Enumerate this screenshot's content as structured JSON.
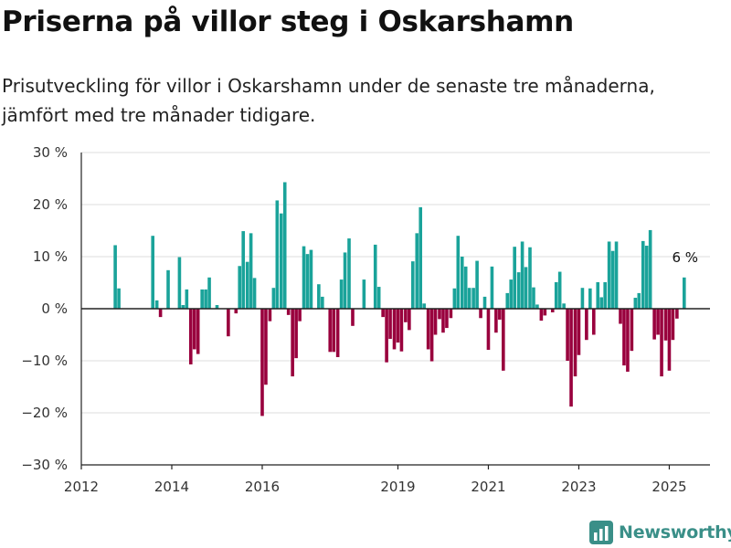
{
  "title": "Priserna på villor steg i Oskarshamn",
  "subtitle": "Prisutveckling för villor i Oskarshamn under de senaste tre månaderna, jämfört med tre månader tidigare.",
  "brand": {
    "name": "Newsworthy",
    "color": "#3a8f88"
  },
  "colors": {
    "positive": "#1aa39a",
    "negative": "#99003d",
    "grid": "#dddddd",
    "axis": "#222222"
  },
  "chart_data": {
    "type": "bar",
    "ylim": [
      -30,
      30
    ],
    "yticks": [
      30,
      20,
      10,
      0,
      -10,
      -20,
      -30
    ],
    "ytick_labels": [
      "30 %",
      "20 %",
      "10 %",
      "0 %",
      "−10 %",
      "−20 %",
      "−30 %"
    ],
    "xticks": [
      2012,
      2014,
      2016,
      2019,
      2021,
      2023,
      2025
    ],
    "xtick_labels": [
      "2012",
      "2014",
      "2016",
      "2019",
      "2021",
      "2023",
      "2025"
    ],
    "grid": true,
    "annotation": {
      "text": "6 %",
      "x": 2025.33
    },
    "series": [
      {
        "values": [
          [
            2012.75,
            12.2
          ],
          [
            2012.83,
            3.9
          ],
          [
            2013.58,
            14.0
          ],
          [
            2013.67,
            1.6
          ],
          [
            2013.75,
            -1.6
          ],
          [
            2013.92,
            7.4
          ],
          [
            2014.17,
            9.9
          ],
          [
            2014.25,
            0.7
          ],
          [
            2014.33,
            3.7
          ],
          [
            2014.42,
            -10.7
          ],
          [
            2014.5,
            -7.8
          ],
          [
            2014.58,
            -8.7
          ],
          [
            2014.67,
            3.7
          ],
          [
            2014.75,
            3.7
          ],
          [
            2014.83,
            6.0
          ],
          [
            2015.0,
            0.7
          ],
          [
            2015.25,
            -5.3
          ],
          [
            2015.42,
            -0.9
          ],
          [
            2015.5,
            8.2
          ],
          [
            2015.58,
            14.9
          ],
          [
            2015.67,
            9.0
          ],
          [
            2015.75,
            14.5
          ],
          [
            2015.83,
            5.9
          ],
          [
            2016.0,
            -20.6
          ],
          [
            2016.08,
            -14.6
          ],
          [
            2016.17,
            -2.4
          ],
          [
            2016.25,
            4.0
          ],
          [
            2016.33,
            20.8
          ],
          [
            2016.42,
            18.3
          ],
          [
            2016.5,
            24.3
          ],
          [
            2016.58,
            -1.2
          ],
          [
            2016.67,
            -13.0
          ],
          [
            2016.75,
            -9.5
          ],
          [
            2016.83,
            -2.4
          ],
          [
            2016.92,
            12.0
          ],
          [
            2017.0,
            10.5
          ],
          [
            2017.08,
            11.3
          ],
          [
            2017.25,
            4.7
          ],
          [
            2017.33,
            2.3
          ],
          [
            2017.5,
            -8.3
          ],
          [
            2017.58,
            -8.3
          ],
          [
            2017.67,
            -9.3
          ],
          [
            2017.75,
            5.6
          ],
          [
            2017.83,
            10.8
          ],
          [
            2017.92,
            13.5
          ],
          [
            2018.0,
            -3.3
          ],
          [
            2018.25,
            5.6
          ],
          [
            2018.5,
            12.3
          ],
          [
            2018.58,
            4.2
          ],
          [
            2018.67,
            -1.6
          ],
          [
            2018.75,
            -10.3
          ],
          [
            2018.83,
            -5.8
          ],
          [
            2018.92,
            -7.8
          ],
          [
            2019.0,
            -6.5
          ],
          [
            2019.08,
            -8.2
          ],
          [
            2019.17,
            -2.6
          ],
          [
            2019.25,
            -4.1
          ],
          [
            2019.33,
            9.1
          ],
          [
            2019.42,
            14.5
          ],
          [
            2019.5,
            19.5
          ],
          [
            2019.58,
            1.0
          ],
          [
            2019.67,
            -7.8
          ],
          [
            2019.75,
            -10.1
          ],
          [
            2019.83,
            -5.0
          ],
          [
            2019.92,
            -2.0
          ],
          [
            2020.0,
            -4.6
          ],
          [
            2020.08,
            -3.7
          ],
          [
            2020.17,
            -1.8
          ],
          [
            2020.25,
            3.9
          ],
          [
            2020.33,
            14.0
          ],
          [
            2020.42,
            10.0
          ],
          [
            2020.5,
            8.1
          ],
          [
            2020.58,
            4.0
          ],
          [
            2020.67,
            4.0
          ],
          [
            2020.75,
            9.2
          ],
          [
            2020.83,
            -1.8
          ],
          [
            2020.92,
            2.3
          ],
          [
            2021.0,
            -7.9
          ],
          [
            2021.08,
            8.1
          ],
          [
            2021.17,
            -4.6
          ],
          [
            2021.25,
            -2.1
          ],
          [
            2021.33,
            -11.9
          ],
          [
            2021.42,
            3.0
          ],
          [
            2021.5,
            5.6
          ],
          [
            2021.58,
            11.9
          ],
          [
            2021.67,
            7.0
          ],
          [
            2021.75,
            12.9
          ],
          [
            2021.83,
            8.0
          ],
          [
            2021.92,
            11.8
          ],
          [
            2022.0,
            4.1
          ],
          [
            2022.08,
            0.8
          ],
          [
            2022.17,
            -2.3
          ],
          [
            2022.25,
            -1.3
          ],
          [
            2022.42,
            -0.7
          ],
          [
            2022.5,
            5.1
          ],
          [
            2022.58,
            7.1
          ],
          [
            2022.67,
            1.0
          ],
          [
            2022.75,
            -10.0
          ],
          [
            2022.83,
            -18.8
          ],
          [
            2022.92,
            -13.0
          ],
          [
            2023.0,
            -8.9
          ],
          [
            2023.08,
            4.0
          ],
          [
            2023.17,
            -6.0
          ],
          [
            2023.25,
            3.9
          ],
          [
            2023.33,
            -5.0
          ],
          [
            2023.42,
            5.1
          ],
          [
            2023.5,
            2.2
          ],
          [
            2023.58,
            5.1
          ],
          [
            2023.67,
            12.9
          ],
          [
            2023.75,
            11.1
          ],
          [
            2023.83,
            12.9
          ],
          [
            2023.92,
            -2.9
          ],
          [
            2024.0,
            -10.9
          ],
          [
            2024.08,
            -12.1
          ],
          [
            2024.17,
            -8.1
          ],
          [
            2024.25,
            2.1
          ],
          [
            2024.33,
            3.0
          ],
          [
            2024.42,
            13.0
          ],
          [
            2024.5,
            12.1
          ],
          [
            2024.58,
            15.1
          ],
          [
            2024.67,
            -5.9
          ],
          [
            2024.75,
            -5.0
          ],
          [
            2024.83,
            -13.0
          ],
          [
            2024.92,
            -6.1
          ],
          [
            2025.0,
            -11.9
          ],
          [
            2025.08,
            -6.0
          ],
          [
            2025.17,
            -1.9
          ],
          [
            2025.33,
            6.0
          ]
        ]
      }
    ]
  }
}
